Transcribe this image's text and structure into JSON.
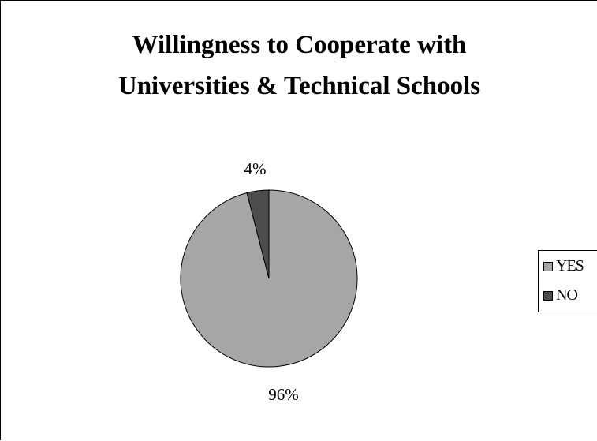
{
  "chart_data": {
    "type": "pie",
    "title_lines": [
      "Willingness to Cooperate with",
      "Universities & Technical Schools"
    ],
    "slices": [
      {
        "name": "YES",
        "value": 96,
        "label": "96%",
        "color": "#a6a6a6"
      },
      {
        "name": "NO",
        "value": 4,
        "label": "4%",
        "color": "#4d4d4d"
      }
    ],
    "legend_position": "right"
  }
}
